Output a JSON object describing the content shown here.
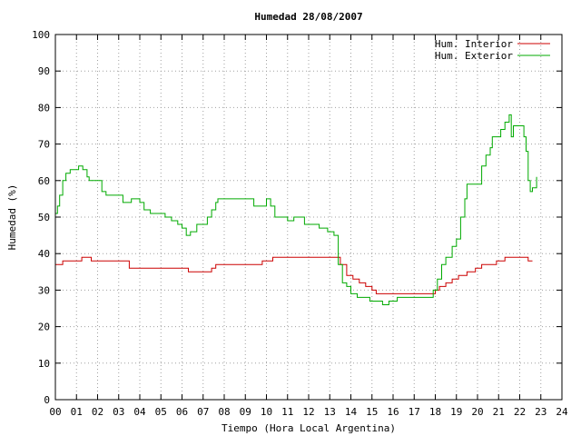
{
  "chart_data": {
    "type": "line",
    "title": "Humedad 28/08/2007",
    "xlabel": "Tiempo (Hora Local Argentina)",
    "ylabel": "Humedad (%)",
    "xlim": [
      0,
      24
    ],
    "ylim": [
      0,
      100
    ],
    "grid": true,
    "legend_position": "top-right",
    "x_ticks": [
      "00",
      "01",
      "02",
      "03",
      "04",
      "05",
      "06",
      "07",
      "08",
      "09",
      "10",
      "11",
      "12",
      "13",
      "14",
      "15",
      "16",
      "17",
      "18",
      "19",
      "20",
      "21",
      "22",
      "23",
      "24"
    ],
    "y_ticks": [
      "0",
      "10",
      "20",
      "30",
      "40",
      "50",
      "60",
      "70",
      "80",
      "90",
      "100"
    ],
    "series": [
      {
        "name": "Hum. Interior",
        "color": "#cc0000",
        "points": [
          [
            0,
            37
          ],
          [
            0.3,
            37
          ],
          [
            0.35,
            38
          ],
          [
            1.2,
            38
          ],
          [
            1.25,
            39
          ],
          [
            1.6,
            39
          ],
          [
            1.7,
            38
          ],
          [
            3.4,
            38
          ],
          [
            3.5,
            36
          ],
          [
            6.2,
            36
          ],
          [
            6.3,
            35
          ],
          [
            7.3,
            35
          ],
          [
            7.4,
            36
          ],
          [
            7.6,
            37
          ],
          [
            9.7,
            37
          ],
          [
            9.8,
            38
          ],
          [
            10.2,
            38
          ],
          [
            10.3,
            39
          ],
          [
            13.3,
            39
          ],
          [
            13.5,
            37
          ],
          [
            13.8,
            34
          ],
          [
            14.1,
            33
          ],
          [
            14.4,
            32
          ],
          [
            14.7,
            31
          ],
          [
            15.0,
            30
          ],
          [
            15.2,
            29
          ],
          [
            17.6,
            29
          ],
          [
            17.8,
            29
          ],
          [
            18.0,
            30
          ],
          [
            18.2,
            31
          ],
          [
            18.5,
            32
          ],
          [
            18.8,
            33
          ],
          [
            19.1,
            34
          ],
          [
            19.5,
            35
          ],
          [
            19.9,
            36
          ],
          [
            20.2,
            37
          ],
          [
            20.9,
            38
          ],
          [
            21.3,
            39
          ],
          [
            22.2,
            39
          ],
          [
            22.4,
            38
          ],
          [
            22.6,
            38
          ]
        ]
      },
      {
        "name": "Hum. Exterior",
        "color": "#00aa00",
        "points": [
          [
            0,
            51
          ],
          [
            0.1,
            53
          ],
          [
            0.2,
            56
          ],
          [
            0.35,
            60
          ],
          [
            0.5,
            62
          ],
          [
            0.7,
            63
          ],
          [
            1.0,
            63
          ],
          [
            1.1,
            64
          ],
          [
            1.3,
            63
          ],
          [
            1.5,
            61
          ],
          [
            1.6,
            60
          ],
          [
            2.0,
            60
          ],
          [
            2.2,
            57
          ],
          [
            2.4,
            56
          ],
          [
            3.0,
            56
          ],
          [
            3.2,
            54
          ],
          [
            3.5,
            54
          ],
          [
            3.6,
            55
          ],
          [
            4.0,
            54
          ],
          [
            4.2,
            52
          ],
          [
            4.5,
            51
          ],
          [
            5.1,
            51
          ],
          [
            5.2,
            50
          ],
          [
            5.5,
            49
          ],
          [
            5.8,
            48
          ],
          [
            6.0,
            47
          ],
          [
            6.2,
            45
          ],
          [
            6.4,
            46
          ],
          [
            6.7,
            48
          ],
          [
            7.0,
            48
          ],
          [
            7.2,
            50
          ],
          [
            7.4,
            52
          ],
          [
            7.6,
            54
          ],
          [
            7.7,
            55
          ],
          [
            9.3,
            55
          ],
          [
            9.4,
            53
          ],
          [
            9.7,
            53
          ],
          [
            10.0,
            55
          ],
          [
            10.2,
            53
          ],
          [
            10.4,
            50
          ],
          [
            10.7,
            50
          ],
          [
            11.0,
            49
          ],
          [
            11.3,
            50
          ],
          [
            11.6,
            50
          ],
          [
            11.8,
            48
          ],
          [
            12.2,
            48
          ],
          [
            12.5,
            47
          ],
          [
            12.7,
            47
          ],
          [
            12.9,
            46
          ],
          [
            13.1,
            46
          ],
          [
            13.2,
            45
          ],
          [
            13.4,
            37
          ],
          [
            13.6,
            32
          ],
          [
            13.8,
            31
          ],
          [
            14.0,
            29
          ],
          [
            14.3,
            28
          ],
          [
            14.6,
            28
          ],
          [
            14.9,
            27
          ],
          [
            15.2,
            27
          ],
          [
            15.5,
            26
          ],
          [
            15.8,
            27
          ],
          [
            16.2,
            28
          ],
          [
            16.6,
            28
          ],
          [
            17.0,
            28
          ],
          [
            17.4,
            28
          ],
          [
            17.6,
            28
          ],
          [
            17.9,
            30
          ],
          [
            18.1,
            33
          ],
          [
            18.3,
            37
          ],
          [
            18.5,
            39
          ],
          [
            18.8,
            42
          ],
          [
            19.0,
            44
          ],
          [
            19.2,
            50
          ],
          [
            19.4,
            55
          ],
          [
            19.5,
            59
          ],
          [
            20.0,
            59
          ],
          [
            20.2,
            64
          ],
          [
            20.4,
            67
          ],
          [
            20.6,
            69
          ],
          [
            20.7,
            72
          ],
          [
            21.0,
            72
          ],
          [
            21.1,
            74
          ],
          [
            21.3,
            76
          ],
          [
            21.5,
            78
          ],
          [
            21.6,
            72
          ],
          [
            21.7,
            75
          ],
          [
            22.1,
            75
          ],
          [
            22.2,
            72
          ],
          [
            22.3,
            68
          ],
          [
            22.4,
            60
          ],
          [
            22.5,
            57
          ],
          [
            22.6,
            58
          ],
          [
            22.8,
            61
          ]
        ]
      }
    ]
  }
}
